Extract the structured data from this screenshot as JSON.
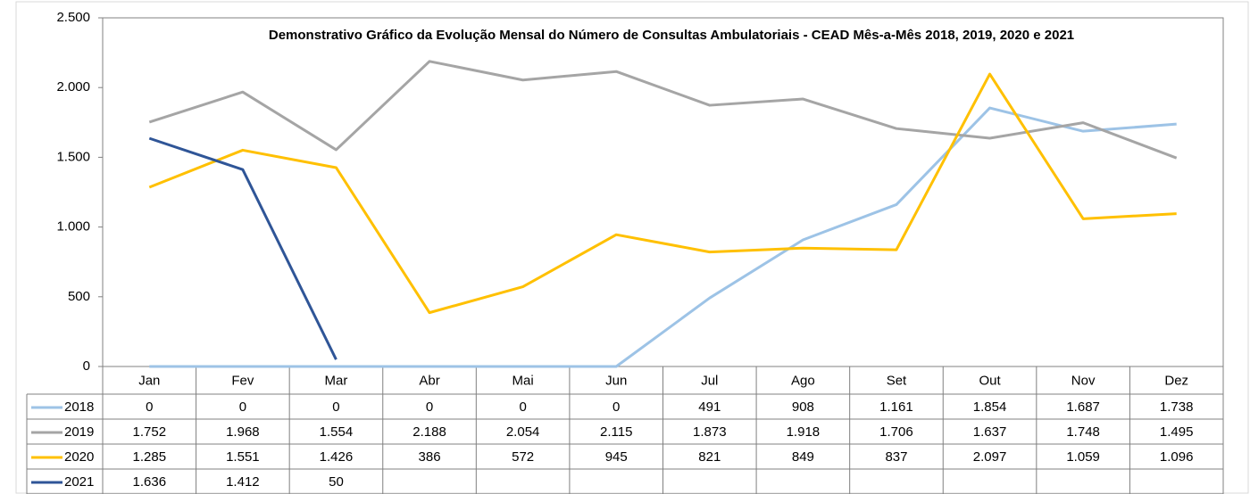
{
  "chart_data": {
    "type": "line",
    "title": "Demonstrativo Gráfico da Evolução Mensal do Número de Consultas Ambulatoriais - CEAD Mês-a-Mês 2018, 2019, 2020 e 2021",
    "categories": [
      "Jan",
      "Fev",
      "Mar",
      "Abr",
      "Mai",
      "Jun",
      "Jul",
      "Ago",
      "Set",
      "Out",
      "Nov",
      "Dez"
    ],
    "series": [
      {
        "name": "2018",
        "color": "#9dc3e6",
        "values": [
          0,
          0,
          0,
          0,
          0,
          0,
          491,
          908,
          1161,
          1854,
          1687,
          1738
        ],
        "value_labels": [
          "0",
          "0",
          "0",
          "0",
          "0",
          "0",
          "491",
          "908",
          "1.161",
          "1.854",
          "1.687",
          "1.738"
        ]
      },
      {
        "name": "2019",
        "color": "#a5a5a5",
        "values": [
          1752,
          1968,
          1554,
          2188,
          2054,
          2115,
          1873,
          1918,
          1706,
          1637,
          1748,
          1495
        ],
        "value_labels": [
          "1.752",
          "1.968",
          "1.554",
          "2.188",
          "2.054",
          "2.115",
          "1.873",
          "1.918",
          "1.706",
          "1.637",
          "1.748",
          "1.495"
        ]
      },
      {
        "name": "2020",
        "color": "#ffc000",
        "values": [
          1285,
          1551,
          1426,
          386,
          572,
          945,
          821,
          849,
          837,
          2097,
          1059,
          1096
        ],
        "value_labels": [
          "1.285",
          "1.551",
          "1.426",
          "386",
          "572",
          "945",
          "821",
          "849",
          "837",
          "2.097",
          "1.059",
          "1.096"
        ]
      },
      {
        "name": "2021",
        "color": "#2f5597",
        "values": [
          1636,
          1412,
          50,
          null,
          null,
          null,
          null,
          null,
          null,
          null,
          null,
          null
        ],
        "value_labels": [
          "1.636",
          "1.412",
          "50",
          null,
          null,
          null,
          null,
          null,
          null,
          null,
          null,
          null
        ]
      }
    ],
    "ylim": [
      0,
      2500
    ],
    "yticks": [
      0,
      500,
      {
        "value": 1000,
        "label": "1.000"
      },
      {
        "value": 1500,
        "label": "1.500"
      },
      {
        "value": 2000,
        "label": "2.000"
      },
      {
        "value": 2500,
        "label": "2.500"
      }
    ],
    "grid": false
  }
}
